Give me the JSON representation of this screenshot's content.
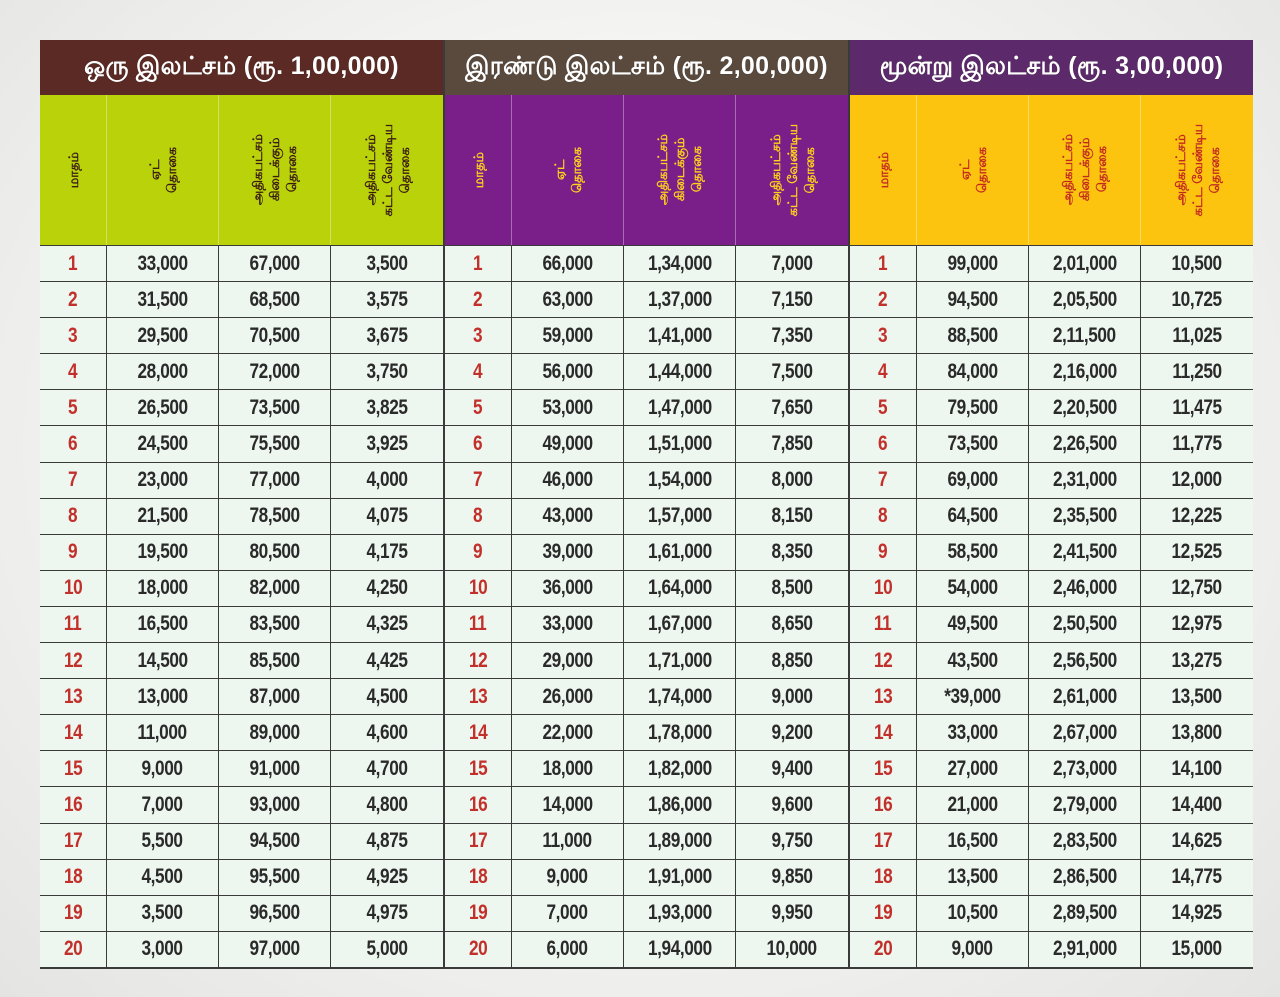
{
  "groups": [
    {
      "title": "ஒரு இலட்சம் (ரூ. 1,00,000)",
      "title_bg": "#5b2a24",
      "header_bg": "#b9d20a",
      "header_fg": "#3a1c10",
      "columns": [
        "மாதம்",
        "ஏட்\nதொகை",
        "அதிகபட்சம்\nகிடைக்கும்\nதொகை",
        "அதிகபட்சம்\nகட்ட வேண்டிய\nதொகை"
      ],
      "rows": [
        [
          "1",
          "33,000",
          "67,000",
          "3,500"
        ],
        [
          "2",
          "31,500",
          "68,500",
          "3,575"
        ],
        [
          "3",
          "29,500",
          "70,500",
          "3,675"
        ],
        [
          "4",
          "28,000",
          "72,000",
          "3,750"
        ],
        [
          "5",
          "26,500",
          "73,500",
          "3,825"
        ],
        [
          "6",
          "24,500",
          "75,500",
          "3,925"
        ],
        [
          "7",
          "23,000",
          "77,000",
          "4,000"
        ],
        [
          "8",
          "21,500",
          "78,500",
          "4,075"
        ],
        [
          "9",
          "19,500",
          "80,500",
          "4,175"
        ],
        [
          "10",
          "18,000",
          "82,000",
          "4,250"
        ],
        [
          "11",
          "16,500",
          "83,500",
          "4,325"
        ],
        [
          "12",
          "14,500",
          "85,500",
          "4,425"
        ],
        [
          "13",
          "13,000",
          "87,000",
          "4,500"
        ],
        [
          "14",
          "11,000",
          "89,000",
          "4,600"
        ],
        [
          "15",
          "9,000",
          "91,000",
          "4,700"
        ],
        [
          "16",
          "7,000",
          "93,000",
          "4,800"
        ],
        [
          "17",
          "5,500",
          "94,500",
          "4,875"
        ],
        [
          "18",
          "4,500",
          "95,500",
          "4,925"
        ],
        [
          "19",
          "3,500",
          "96,500",
          "4,975"
        ],
        [
          "20",
          "3,000",
          "97,000",
          "5,000"
        ]
      ]
    },
    {
      "title": "இரண்டு இலட்சம் (ரூ. 2,00,000)",
      "title_bg": "#5a4a3e",
      "header_bg": "#7a1f8a",
      "header_fg": "#ffd21a",
      "columns": [
        "மாதம்",
        "ஏட்\nதொகை",
        "அதிகபட்சம்\nகிடைக்கும்\nதொகை",
        "அதிகபட்சம்\nகட்ட வேண்டிய\nதொகை"
      ],
      "rows": [
        [
          "1",
          "66,000",
          "1,34,000",
          "7,000"
        ],
        [
          "2",
          "63,000",
          "1,37,000",
          "7,150"
        ],
        [
          "3",
          "59,000",
          "1,41,000",
          "7,350"
        ],
        [
          "4",
          "56,000",
          "1,44,000",
          "7,500"
        ],
        [
          "5",
          "53,000",
          "1,47,000",
          "7,650"
        ],
        [
          "6",
          "49,000",
          "1,51,000",
          "7,850"
        ],
        [
          "7",
          "46,000",
          "1,54,000",
          "8,000"
        ],
        [
          "8",
          "43,000",
          "1,57,000",
          "8,150"
        ],
        [
          "9",
          "39,000",
          "1,61,000",
          "8,350"
        ],
        [
          "10",
          "36,000",
          "1,64,000",
          "8,500"
        ],
        [
          "11",
          "33,000",
          "1,67,000",
          "8,650"
        ],
        [
          "12",
          "29,000",
          "1,71,000",
          "8,850"
        ],
        [
          "13",
          "26,000",
          "1,74,000",
          "9,000"
        ],
        [
          "14",
          "22,000",
          "1,78,000",
          "9,200"
        ],
        [
          "15",
          "18,000",
          "1,82,000",
          "9,400"
        ],
        [
          "16",
          "14,000",
          "1,86,000",
          "9,600"
        ],
        [
          "17",
          "11,000",
          "1,89,000",
          "9,750"
        ],
        [
          "18",
          "9,000",
          "1,91,000",
          "9,850"
        ],
        [
          "19",
          "7,000",
          "1,93,000",
          "9,950"
        ],
        [
          "20",
          "6,000",
          "1,94,000",
          "10,000"
        ]
      ]
    },
    {
      "title": "மூன்று இலட்சம் (ரூ. 3,00,000)",
      "title_bg": "#5c2a6a",
      "header_bg": "#fcc30f",
      "header_fg": "#c22a20",
      "columns": [
        "மாதம்",
        "ஏட்\nதொகை",
        "அதிகபட்சம்\nகிடைக்கும்\nதொகை",
        "அதிகபட்சம்\nகட்ட வேண்டிய\nதொகை"
      ],
      "rows": [
        [
          "1",
          "99,000",
          "2,01,000",
          "10,500"
        ],
        [
          "2",
          "94,500",
          "2,05,500",
          "10,725"
        ],
        [
          "3",
          "88,500",
          "2,11,500",
          "11,025"
        ],
        [
          "4",
          "84,000",
          "2,16,000",
          "11,250"
        ],
        [
          "5",
          "79,500",
          "2,20,500",
          "11,475"
        ],
        [
          "6",
          "73,500",
          "2,26,500",
          "11,775"
        ],
        [
          "7",
          "69,000",
          "2,31,000",
          "12,000"
        ],
        [
          "8",
          "64,500",
          "2,35,500",
          "12,225"
        ],
        [
          "9",
          "58,500",
          "2,41,500",
          "12,525"
        ],
        [
          "10",
          "54,000",
          "2,46,000",
          "12,750"
        ],
        [
          "11",
          "49,500",
          "2,50,500",
          "12,975"
        ],
        [
          "12",
          "43,500",
          "2,56,500",
          "13,275"
        ],
        [
          "13",
          "*39,000",
          "2,61,000",
          "13,500"
        ],
        [
          "14",
          "33,000",
          "2,67,000",
          "13,800"
        ],
        [
          "15",
          "27,000",
          "2,73,000",
          "14,100"
        ],
        [
          "16",
          "21,000",
          "2,79,000",
          "14,400"
        ],
        [
          "17",
          "16,500",
          "2,83,500",
          "14,625"
        ],
        [
          "18",
          "13,500",
          "2,86,500",
          "14,775"
        ],
        [
          "19",
          "10,500",
          "2,89,500",
          "14,925"
        ],
        [
          "20",
          "9,000",
          "2,91,000",
          "15,000"
        ]
      ]
    }
  ],
  "colors": {
    "row_bg": "#eef7ef",
    "month_text": "#c1302b",
    "value_text": "#2a2a2a",
    "grid_line": "#3a3a3a"
  }
}
